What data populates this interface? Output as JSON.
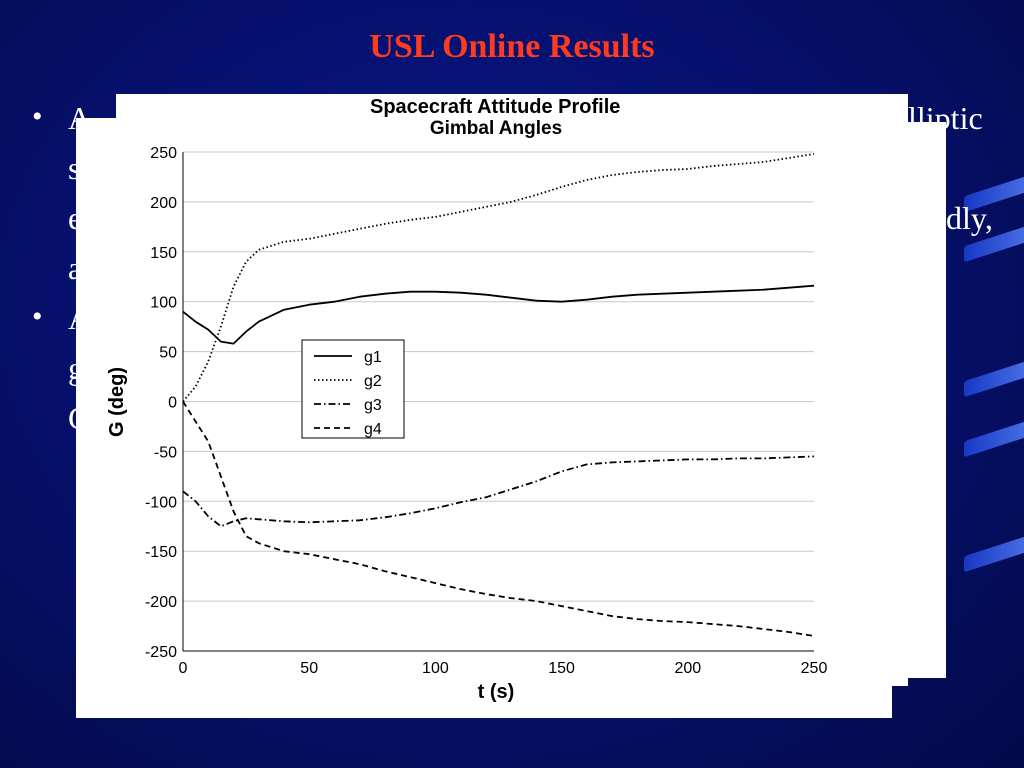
{
  "slide": {
    "title": "USL Online Results",
    "bullets": [
      {
        "lines": [
          "A",
          "s",
          "e",
          "a"
        ],
        "trailing": [
          "lliptic",
          "",
          "dly,",
          ""
        ]
      },
      {
        "lines": [
          "A",
          "g",
          "C"
        ],
        "trailing": [
          "",
          "",
          ""
        ]
      }
    ],
    "back_figure_title": "Spacecraft Attitude Profile"
  },
  "chart_data": {
    "type": "line",
    "title": "Gimbal Angles",
    "xlabel": "t (s)",
    "ylabel": "G (deg)",
    "xlim": [
      0,
      250
    ],
    "ylim": [
      -250,
      250
    ],
    "xticks": [
      0,
      50,
      100,
      150,
      200,
      250
    ],
    "yticks": [
      250,
      200,
      150,
      100,
      50,
      0,
      -50,
      -100,
      -150,
      -200,
      -250
    ],
    "grid": true,
    "legend_position": "center-left",
    "series": [
      {
        "name": "g1",
        "dash": "solid",
        "x": [
          0,
          5,
          10,
          15,
          20,
          25,
          30,
          40,
          50,
          60,
          70,
          80,
          90,
          100,
          110,
          120,
          130,
          140,
          150,
          160,
          170,
          180,
          190,
          200,
          210,
          220,
          230,
          240,
          250
        ],
        "y": [
          90,
          80,
          72,
          60,
          58,
          70,
          80,
          92,
          97,
          100,
          105,
          108,
          110,
          110,
          109,
          107,
          104,
          101,
          100,
          102,
          105,
          107,
          108,
          109,
          110,
          111,
          112,
          114,
          116
        ]
      },
      {
        "name": "g2",
        "dash": "dotted",
        "x": [
          0,
          5,
          10,
          15,
          20,
          25,
          30,
          40,
          50,
          60,
          70,
          80,
          90,
          100,
          110,
          120,
          130,
          140,
          150,
          160,
          170,
          180,
          190,
          200,
          210,
          220,
          230,
          240,
          250
        ],
        "y": [
          0,
          15,
          40,
          75,
          115,
          140,
          152,
          160,
          163,
          168,
          173,
          178,
          182,
          185,
          190,
          195,
          200,
          207,
          215,
          222,
          227,
          230,
          232,
          233,
          236,
          238,
          240,
          244,
          248
        ]
      },
      {
        "name": "g3",
        "dash": "dashdot",
        "x": [
          0,
          5,
          10,
          15,
          20,
          25,
          30,
          40,
          50,
          60,
          70,
          80,
          90,
          100,
          110,
          120,
          130,
          140,
          150,
          160,
          170,
          180,
          190,
          200,
          210,
          220,
          230,
          240,
          250
        ],
        "y": [
          -90,
          -100,
          -115,
          -125,
          -120,
          -117,
          -118,
          -120,
          -121,
          -120,
          -119,
          -116,
          -112,
          -107,
          -101,
          -96,
          -88,
          -80,
          -70,
          -63,
          -61,
          -60,
          -59,
          -58,
          -58,
          -57,
          -57,
          -56,
          -55
        ]
      },
      {
        "name": "g4",
        "dash": "dashed",
        "x": [
          0,
          5,
          10,
          15,
          20,
          25,
          30,
          40,
          50,
          60,
          70,
          80,
          90,
          100,
          110,
          120,
          130,
          140,
          150,
          160,
          170,
          180,
          190,
          200,
          210,
          220,
          230,
          240,
          250
        ],
        "y": [
          0,
          -20,
          -40,
          -75,
          -110,
          -135,
          -142,
          -150,
          -153,
          -158,
          -163,
          -170,
          -176,
          -182,
          -188,
          -193,
          -197,
          -200,
          -205,
          -210,
          -215,
          -218,
          -220,
          -221,
          -223,
          -225,
          -228,
          -231,
          -235
        ]
      }
    ]
  }
}
